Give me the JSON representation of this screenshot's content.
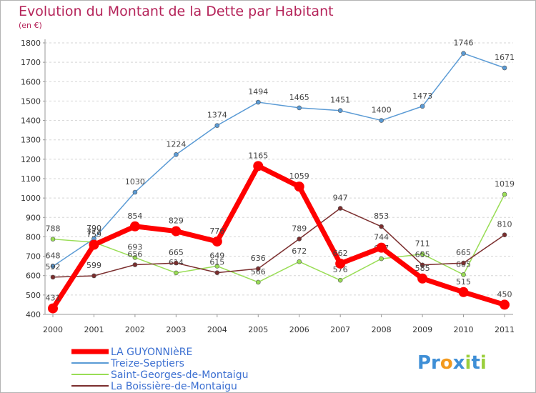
{
  "chart_data": {
    "type": "line",
    "title": "Evolution du Montant de la Dette par Habitant",
    "subtitle": "(en €)",
    "xlabel": "",
    "ylabel": "",
    "x": [
      "2000",
      "2001",
      "2002",
      "2003",
      "2004",
      "2005",
      "2006",
      "2007",
      "2008",
      "2009",
      "2010",
      "2011"
    ],
    "ylim": [
      400,
      1800
    ],
    "yticks": [
      400,
      500,
      600,
      700,
      800,
      900,
      1000,
      1100,
      1200,
      1300,
      1400,
      1500,
      1600,
      1700,
      1800
    ],
    "grid": "horizontal dashed",
    "legend_position": "bottom-left",
    "series": [
      {
        "name": "LA GUYONNIèRE",
        "color": "#ff0000",
        "values": [
          431,
          759,
          854,
          829,
          776,
          1165,
          1059,
          662,
          744,
          585,
          515,
          450
        ],
        "labels": [
          "431",
          "759",
          "854",
          "829",
          "776",
          "1165",
          "1059",
          "662",
          "744",
          "585",
          "515",
          "450"
        ]
      },
      {
        "name": "Treize-Septiers",
        "color": "#5b9bd5",
        "values": [
          648,
          790,
          1030,
          1224,
          1374,
          1494,
          1465,
          1451,
          1400,
          1473,
          1746,
          1671
        ],
        "labels": [
          "648",
          "790",
          "1030",
          "1224",
          "1374",
          "1494",
          "1465",
          "1451",
          "1400",
          "1473",
          "1746",
          "1671"
        ]
      },
      {
        "name": "Saint-Georges-de-Montaigu",
        "color": "#99dd55",
        "values": [
          788,
          772,
          693,
          614,
          649,
          566,
          672,
          576,
          687,
          711,
          605,
          1019
        ],
        "labels": [
          "788",
          "772",
          "693",
          "614",
          "649",
          "566",
          "672",
          "576",
          "687",
          "711",
          "605",
          "1019"
        ]
      },
      {
        "name": "La Boissière-de-Montaigu",
        "color": "#7b2e2e",
        "values": [
          592,
          599,
          656,
          665,
          615,
          636,
          789,
          947,
          853,
          655,
          665,
          810
        ],
        "labels": [
          "592",
          "599",
          "656",
          "665",
          "615",
          "636",
          "789",
          "947",
          "853",
          "655",
          "665",
          "810"
        ]
      }
    ]
  },
  "logo": {
    "text": "Proxiti"
  }
}
